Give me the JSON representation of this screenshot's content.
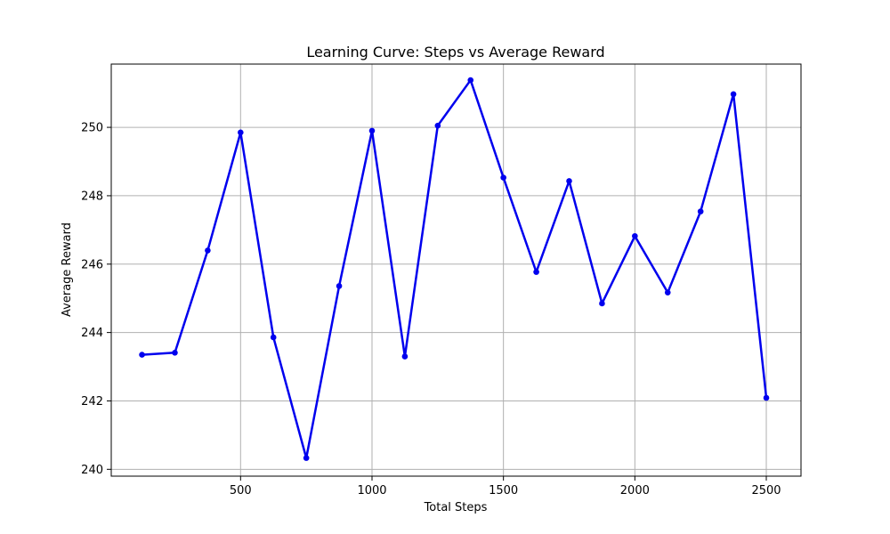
{
  "chart_data": {
    "type": "line",
    "title": "Learning Curve: Steps vs Average Reward",
    "xlabel": "Total Steps",
    "ylabel": "Average Reward",
    "xlim": [
      8,
      2632
    ],
    "ylim": [
      239.8,
      251.85
    ],
    "xticks": [
      500,
      1000,
      1500,
      2000,
      2500
    ],
    "yticks": [
      240,
      242,
      244,
      246,
      248,
      250
    ],
    "grid": true,
    "color": "#0000ee",
    "series": [
      {
        "x": [
          125,
          250,
          375,
          500,
          625,
          750,
          875,
          1000,
          1125,
          1250,
          1375,
          1500,
          1625,
          1750,
          1875,
          2000,
          2125,
          2250,
          2375,
          2500
        ],
        "y": [
          243.35,
          243.41,
          246.4,
          249.85,
          243.86,
          240.33,
          245.36,
          249.9,
          243.3,
          250.05,
          251.38,
          248.53,
          245.77,
          248.43,
          244.85,
          246.82,
          245.17,
          247.54,
          250.97,
          242.09
        ]
      }
    ]
  }
}
